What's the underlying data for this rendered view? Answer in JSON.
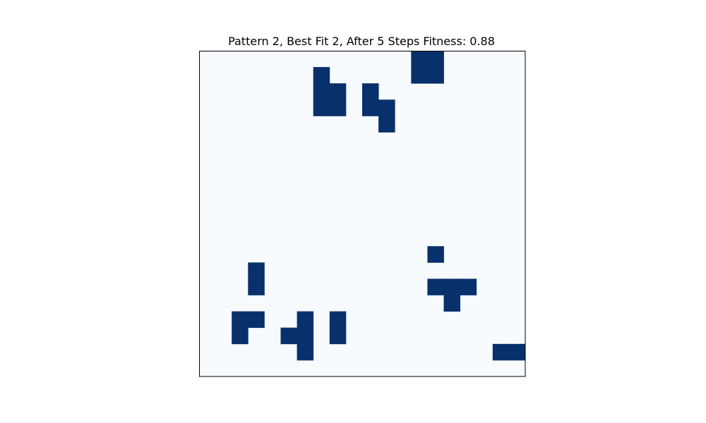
{
  "chart_data": {
    "type": "heatmap",
    "title": "Pattern 2, Best Fit 2, After 5 Steps Fitness: 0.88",
    "xlabel": "",
    "ylabel": "",
    "grid_size": [
      20,
      20
    ],
    "axis_ticks": false,
    "colormap": "Blues",
    "colors": {
      "empty": "#f7fbff",
      "filled": "#08306b",
      "frame": "#000000"
    },
    "live_cells": [
      [
        0,
        13
      ],
      [
        0,
        14
      ],
      [
        1,
        13
      ],
      [
        1,
        14
      ],
      [
        1,
        7
      ],
      [
        2,
        7
      ],
      [
        2,
        8
      ],
      [
        3,
        7
      ],
      [
        3,
        8
      ],
      [
        2,
        10
      ],
      [
        3,
        10
      ],
      [
        3,
        11
      ],
      [
        4,
        11
      ],
      [
        12,
        14
      ],
      [
        13,
        3
      ],
      [
        14,
        3
      ],
      [
        14,
        14
      ],
      [
        14,
        15
      ],
      [
        14,
        16
      ],
      [
        15,
        15
      ],
      [
        16,
        2
      ],
      [
        16,
        3
      ],
      [
        17,
        2
      ],
      [
        16,
        6
      ],
      [
        17,
        5
      ],
      [
        17,
        6
      ],
      [
        18,
        6
      ],
      [
        16,
        8
      ],
      [
        17,
        8
      ],
      [
        18,
        18
      ],
      [
        18,
        19
      ]
    ]
  }
}
